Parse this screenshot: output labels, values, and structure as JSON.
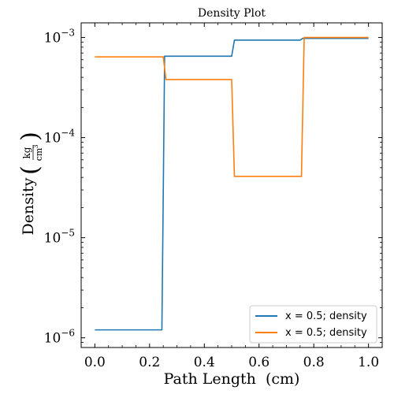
{
  "chart_data": {
    "type": "line",
    "title": "Density Plot",
    "xlabel": "Path Length  (cm)",
    "ylabel": "Density",
    "ylabel_unit_num": "kg",
    "ylabel_unit_den": "cm",
    "ylabel_unit_den_exp": "3",
    "xscale": "linear",
    "yscale": "log",
    "xlim": [
      -0.05,
      1.05
    ],
    "ylim": [
      8e-07,
      0.0014
    ],
    "xticks": [
      0.0,
      0.2,
      0.4,
      0.6,
      0.8,
      1.0
    ],
    "xtick_labels": [
      "0.0",
      "0.2",
      "0.4",
      "0.6",
      "0.8",
      "1.0"
    ],
    "yticks": [
      1e-06,
      1e-05,
      0.0001,
      0.001
    ],
    "ytick_bases": [
      "10",
      "10",
      "10",
      "10"
    ],
    "ytick_exps": [
      "−6",
      "−5",
      "−4",
      "−3"
    ],
    "grid": false,
    "legend_position": "lower-right",
    "series": [
      {
        "name": "x = 0.5; density",
        "color": "#1f77b4",
        "x": [
          0.0,
          0.245,
          0.255,
          0.5,
          0.51,
          0.75,
          0.76,
          1.0
        ],
        "y": [
          1.2e-06,
          1.2e-06,
          0.00065,
          0.00065,
          0.00094,
          0.00094,
          0.00098,
          0.00098
        ]
      },
      {
        "name": "x = 0.5; density",
        "color": "#ff7f0e",
        "x": [
          0.0,
          0.25,
          0.26,
          0.5,
          0.51,
          0.755,
          0.765,
          1.0
        ],
        "y": [
          0.00064,
          0.00064,
          0.00038,
          0.00038,
          4.1e-05,
          4.1e-05,
          0.001,
          0.001
        ]
      }
    ]
  }
}
